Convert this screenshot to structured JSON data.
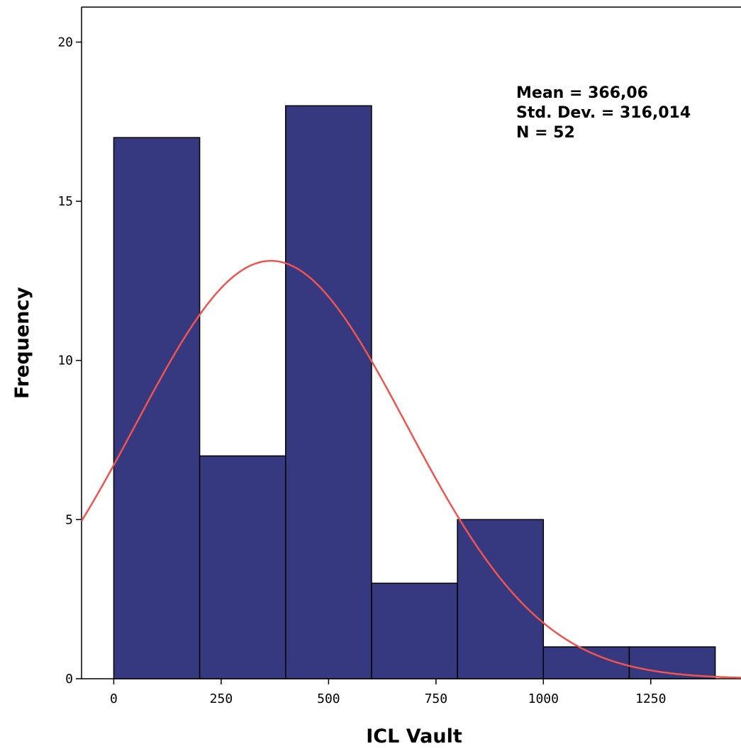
{
  "chart_data": {
    "type": "bar",
    "subtype": "histogram",
    "xlabel": "ICL Vault",
    "ylabel": "Frequency",
    "bins": [
      {
        "start": 0,
        "end": 200,
        "value": 17
      },
      {
        "start": 200,
        "end": 400,
        "value": 7
      },
      {
        "start": 400,
        "end": 600,
        "value": 18
      },
      {
        "start": 600,
        "end": 800,
        "value": 3
      },
      {
        "start": 800,
        "end": 1000,
        "value": 5
      },
      {
        "start": 1000,
        "end": 1200,
        "value": 1
      },
      {
        "start": 1200,
        "end": 1400,
        "value": 1
      }
    ],
    "xlim": [
      -75,
      1460
    ],
    "ylim": [
      0,
      21.1
    ],
    "xticks": [
      0,
      250,
      500,
      750,
      1000,
      1250
    ],
    "yticks": [
      0,
      5,
      10,
      15,
      20
    ],
    "bar_color": "#36397f",
    "curve_color": "#f0544f",
    "normal_curve": {
      "mean": 366.06,
      "std": 316.014,
      "n": 52,
      "bin_width": 200
    },
    "stats": [
      "Mean = 366,06",
      "Std. Dev. = 316,014",
      "N = 52"
    ],
    "grid": false
  }
}
